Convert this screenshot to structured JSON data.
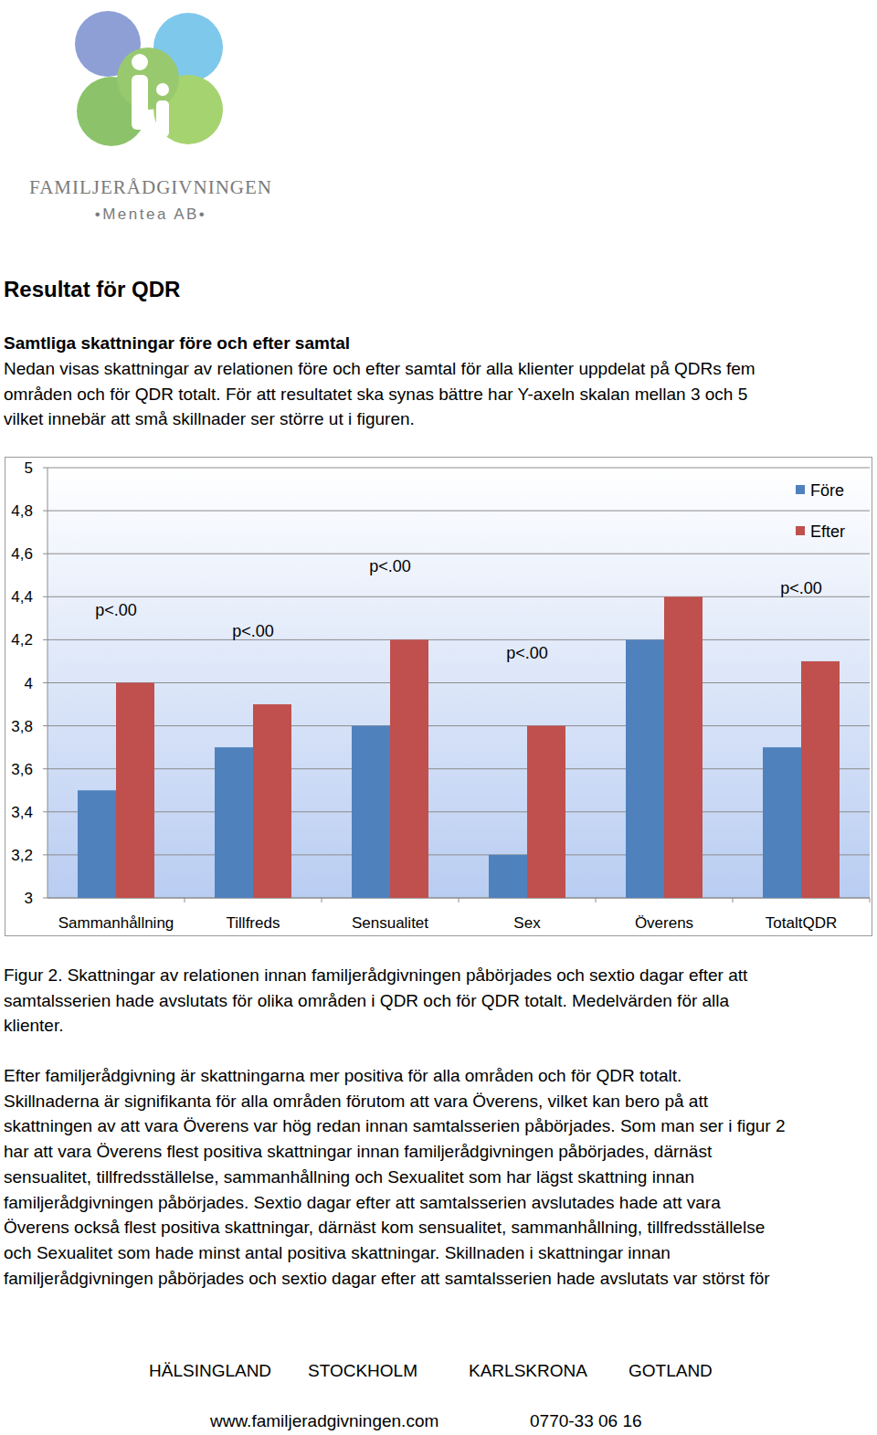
{
  "logo": {
    "name": "FAMILJERÅDGIVNINGEN",
    "tagline": "•Mentea AB•"
  },
  "document": {
    "heading": "Resultat för QDR",
    "subheading": "Samtliga skattningar före och efter samtal",
    "intro": [
      "Nedan visas skattningar av relationen före och efter samtal för alla klienter uppdelat på QDRs fem",
      "områden och för QDR totalt. För att resultatet ska synas bättre har Y-axeln skalan mellan 3 och 5",
      "vilket innebär att små skillnader ser större ut i figuren."
    ],
    "caption": [
      "Figur 2. Skattningar av relationen innan familjerådgivningen påbörjades och sextio dagar efter att",
      "samtalsserien hade avslutats för olika områden i QDR och för QDR totalt. Medelvärden för alla",
      "klienter."
    ],
    "body": [
      "Efter familjerådgivning är skattningarna mer positiva för alla områden och för QDR totalt.",
      "Skillnaderna är signifikanta för alla områden förutom att vara Överens, vilket kan bero på att",
      "skattningen av att vara Överens var hög redan innan samtalsserien påbörjades. Som man ser i figur 2",
      "har att vara Överens flest positiva skattningar innan familjerådgivningen påbörjades, därnäst",
      "sensualitet, tillfredsställelse, sammanhållning och Sexualitet som har lägst skattning innan",
      "familjerådgivningen påbörjades. Sextio dagar efter att samtalsserien avslutades hade att vara",
      "Överens också flest positiva skattningar, därnäst kom sensualitet, sammanhållning, tillfredsställelse",
      "och Sexualitet som hade minst antal positiva skattningar. Skillnaden i skattningar innan",
      "familjerådgivningen påbörjades och sextio dagar efter att samtalsserien hade avslutats var störst för"
    ],
    "footer": {
      "locations": [
        "HÄLSINGLAND",
        "STOCKHOLM",
        "KARLSKRONA",
        "GOTLAND"
      ],
      "website": "www.familjeradgivningen.com",
      "phone": "0770-33 06 16"
    }
  },
  "chart_data": {
    "type": "bar",
    "categories": [
      "Sammanhållning",
      "Tillfreds",
      "Sensualitet",
      "Sex",
      "Överens",
      "TotaltQDR"
    ],
    "series": [
      {
        "name": "Före",
        "color": "#4f81bd",
        "values": [
          3.5,
          3.7,
          3.8,
          3.2,
          4.2,
          3.7
        ]
      },
      {
        "name": "Efter",
        "color": "#c0504d",
        "values": [
          4.0,
          3.9,
          4.2,
          3.8,
          4.4,
          4.1
        ]
      }
    ],
    "annotations": [
      "p<.00",
      "p<.00",
      "p<.00",
      "p<.00",
      null,
      "p<.00"
    ],
    "ylim": [
      3,
      5
    ],
    "yticks": [
      3,
      {
        "value": 3.2,
        "label": "3,2"
      },
      {
        "value": 3.4,
        "label": "3,4"
      },
      {
        "value": 3.6,
        "label": "3,6"
      },
      {
        "value": 3.8,
        "label": "3,8"
      },
      4,
      {
        "value": 4.2,
        "label": "4,2"
      },
      {
        "value": 4.4,
        "label": "4,4"
      },
      {
        "value": 4.6,
        "label": "4,6"
      },
      {
        "value": 4.8,
        "label": "4,8"
      },
      5
    ],
    "grid": true,
    "legend": "top-right"
  }
}
